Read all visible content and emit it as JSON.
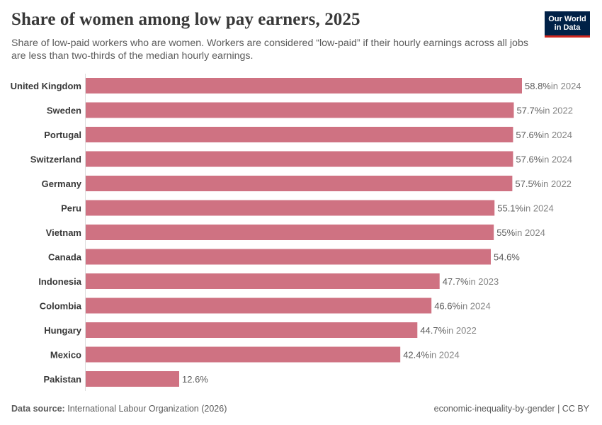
{
  "header": {
    "title": "Share of women among low pay earners, 2025",
    "subtitle": "Share of low-paid workers who are women. Workers are considered “low-paid” if their hourly earnings across all jobs are less than two-thirds of the median hourly earnings.",
    "logo_line1": "Our World",
    "logo_line2": "in Data"
  },
  "footer": {
    "source_label": "Data source:",
    "source_text": "International Labour Organization (2026)",
    "right_text": "economic-inequality-by-gender | CC BY"
  },
  "colors": {
    "bar": "#cf7282",
    "axis": "#dddddd",
    "value_text": "#5b5b5b",
    "year_text": "#858585",
    "label_text": "#383838"
  },
  "chart_data": {
    "type": "bar",
    "orientation": "horizontal",
    "unit": "%",
    "xlim": [
      0,
      58.8
    ],
    "categories": [
      "United Kingdom",
      "Sweden",
      "Portugal",
      "Switzerland",
      "Germany",
      "Peru",
      "Vietnam",
      "Canada",
      "Indonesia",
      "Colombia",
      "Hungary",
      "Mexico",
      "Pakistan"
    ],
    "values": [
      58.8,
      57.7,
      57.6,
      57.6,
      57.5,
      55.1,
      55,
      54.6,
      47.7,
      46.6,
      44.7,
      42.4,
      12.6
    ],
    "value_labels": [
      "58.8%",
      "57.7%",
      "57.6%",
      "57.6%",
      "57.5%",
      "55.1%",
      "55%",
      "54.6%",
      "47.7%",
      "46.6%",
      "44.7%",
      "42.4%",
      "12.6%"
    ],
    "year_notes": [
      "in 2024",
      "in 2022",
      "in 2024",
      "in 2024",
      "in 2022",
      "in 2024",
      "in 2024",
      "",
      "in 2023",
      "in 2024",
      "in 2022",
      "in 2024",
      ""
    ]
  }
}
